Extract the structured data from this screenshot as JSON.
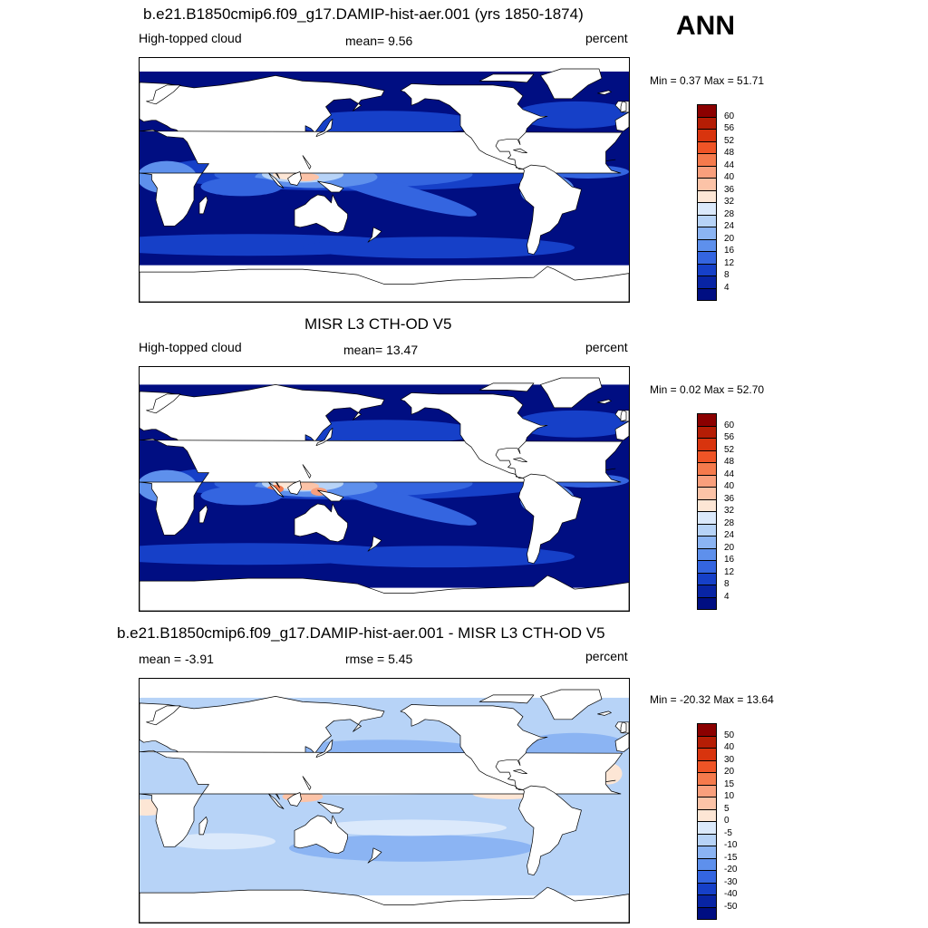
{
  "season": "ANN",
  "panels": [
    {
      "title": "b.e21.B1850cmip6.f09_g17.DAMIP-hist-aer.001 (yrs 1850-1874)",
      "left_label": "High-topped cloud",
      "center_label": "mean=   9.56",
      "right_label": "percent",
      "minmax": "Min =   0.37 Max =  51.71",
      "field": "model",
      "colorbar": {
        "labels": [
          "60",
          "56",
          "52",
          "48",
          "44",
          "40",
          "36",
          "32",
          "28",
          "24",
          "20",
          "16",
          "12",
          "8",
          "4"
        ],
        "colors": [
          "#8b0000",
          "#b51d05",
          "#d8340e",
          "#ef5426",
          "#f57a4c",
          "#f99f7c",
          "#fcc3a7",
          "#fde6d5",
          "#dbe9fb",
          "#b7d3f7",
          "#8bb4f3",
          "#5e90ec",
          "#3465e0",
          "#1640c8",
          "#0824a4",
          "#000e82"
        ]
      }
    },
    {
      "title": "MISR L3 CTH-OD V5",
      "left_label": "High-topped cloud",
      "center_label": "mean=  13.47",
      "right_label": "percent",
      "minmax": "Min =   0.02 Max =  52.70",
      "field": "obs",
      "colorbar": {
        "labels": [
          "60",
          "56",
          "52",
          "48",
          "44",
          "40",
          "36",
          "32",
          "28",
          "24",
          "20",
          "16",
          "12",
          "8",
          "4"
        ],
        "colors": [
          "#8b0000",
          "#b51d05",
          "#d8340e",
          "#ef5426",
          "#f57a4c",
          "#f99f7c",
          "#fcc3a7",
          "#fde6d5",
          "#dbe9fb",
          "#b7d3f7",
          "#8bb4f3",
          "#5e90ec",
          "#3465e0",
          "#1640c8",
          "#0824a4",
          "#000e82"
        ]
      }
    },
    {
      "title": "b.e21.B1850cmip6.f09_g17.DAMIP-hist-aer.001 - MISR L3 CTH-OD V5",
      "left_label": "mean =  -3.91",
      "center_label": "rmse =    5.45",
      "right_label": "percent",
      "minmax": "Min = -20.32 Max =  13.64",
      "field": "diff",
      "colorbar": {
        "labels": [
          "50",
          "40",
          "30",
          "20",
          "15",
          "10",
          "5",
          "0",
          "-5",
          "-10",
          "-15",
          "-20",
          "-30",
          "-40",
          "-50"
        ],
        "colors": [
          "#8b0000",
          "#b51d05",
          "#d8340e",
          "#ef5426",
          "#f57a4c",
          "#f99f7c",
          "#fcc3a7",
          "#fde6d5",
          "#dbe9fb",
          "#b7d3f7",
          "#8bb4f3",
          "#5e90ec",
          "#3465e0",
          "#1640c8",
          "#0824a4",
          "#000e82"
        ]
      }
    }
  ],
  "colors": {
    "deep_blue": "#000e82",
    "mid_blue": "#3465e0",
    "light_blue": "#b7d3f7",
    "pale": "#fde6d5",
    "warm": "#f57a4c",
    "land": "#ffffff",
    "coast": "#000000"
  }
}
